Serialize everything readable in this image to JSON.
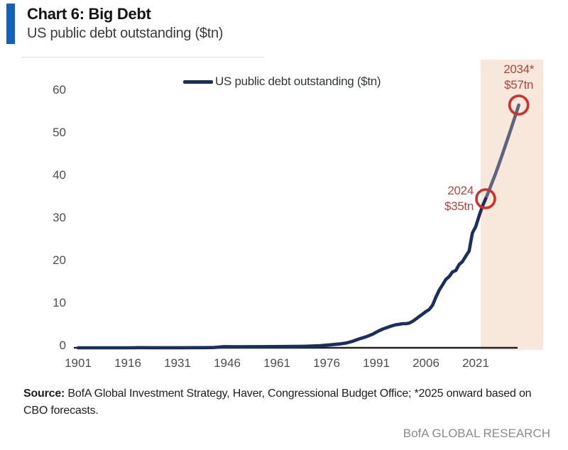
{
  "header": {
    "title": "Chart 6: Big Debt",
    "subtitle": "US public debt outstanding ($tn)",
    "accent_color": "#1161c3"
  },
  "chart_data": {
    "type": "line",
    "title": "US public debt outstanding ($tn)",
    "legend": [
      "US public debt outstanding ($tn)"
    ],
    "legend_position": "top-center",
    "xlabel": "",
    "ylabel": "",
    "x_ticks": [
      1901,
      1916,
      1931,
      1946,
      1961,
      1976,
      1991,
      2006,
      2021
    ],
    "y_ticks": [
      0,
      10,
      20,
      30,
      40,
      50,
      60
    ],
    "xlim": [
      1899,
      2041
    ],
    "ylim": [
      0,
      63
    ],
    "grid": false,
    "series": [
      {
        "name": "US public debt outstanding ($tn)",
        "points": [
          [
            1901,
            0.001
          ],
          [
            1905,
            0.001
          ],
          [
            1910,
            0.001
          ],
          [
            1914,
            0.001
          ],
          [
            1916,
            0.004
          ],
          [
            1918,
            0.015
          ],
          [
            1919,
            0.027
          ],
          [
            1920,
            0.026
          ],
          [
            1923,
            0.022
          ],
          [
            1927,
            0.018
          ],
          [
            1930,
            0.016
          ],
          [
            1933,
            0.023
          ],
          [
            1936,
            0.034
          ],
          [
            1939,
            0.04
          ],
          [
            1941,
            0.049
          ],
          [
            1942,
            0.072
          ],
          [
            1943,
            0.137
          ],
          [
            1944,
            0.201
          ],
          [
            1945,
            0.259
          ],
          [
            1946,
            0.269
          ],
          [
            1948,
            0.252
          ],
          [
            1950,
            0.257
          ],
          [
            1953,
            0.266
          ],
          [
            1956,
            0.273
          ],
          [
            1960,
            0.286
          ],
          [
            1963,
            0.306
          ],
          [
            1966,
            0.32
          ],
          [
            1969,
            0.354
          ],
          [
            1972,
            0.427
          ],
          [
            1974,
            0.475
          ],
          [
            1976,
            0.62
          ],
          [
            1978,
            0.772
          ],
          [
            1980,
            0.908
          ],
          [
            1982,
            1.14
          ],
          [
            1984,
            1.57
          ],
          [
            1986,
            2.13
          ],
          [
            1988,
            2.6
          ],
          [
            1990,
            3.23
          ],
          [
            1991,
            3.67
          ],
          [
            1992,
            4.06
          ],
          [
            1993,
            4.41
          ],
          [
            1994,
            4.69
          ],
          [
            1995,
            4.97
          ],
          [
            1996,
            5.22
          ],
          [
            1997,
            5.41
          ],
          [
            1998,
            5.53
          ],
          [
            1999,
            5.66
          ],
          [
            2000,
            5.67
          ],
          [
            2001,
            5.81
          ],
          [
            2002,
            6.23
          ],
          [
            2003,
            6.78
          ],
          [
            2004,
            7.38
          ],
          [
            2005,
            7.93
          ],
          [
            2006,
            8.51
          ],
          [
            2007,
            9.01
          ],
          [
            2008,
            10.02
          ],
          [
            2009,
            11.91
          ],
          [
            2010,
            13.56
          ],
          [
            2011,
            14.79
          ],
          [
            2012,
            16.07
          ],
          [
            2013,
            16.74
          ],
          [
            2014,
            17.82
          ],
          [
            2015,
            18.15
          ],
          [
            2016,
            19.57
          ],
          [
            2017,
            20.24
          ],
          [
            2018,
            21.52
          ],
          [
            2019,
            22.72
          ],
          [
            2020,
            26.95
          ],
          [
            2021,
            28.43
          ],
          [
            2022,
            30.93
          ],
          [
            2023,
            33.17
          ],
          [
            2024,
            35.0
          ],
          [
            2025,
            36.9
          ],
          [
            2026,
            38.9
          ],
          [
            2027,
            40.9
          ],
          [
            2028,
            43.1
          ],
          [
            2029,
            45.3
          ],
          [
            2030,
            47.6
          ],
          [
            2031,
            49.9
          ],
          [
            2032,
            52.2
          ],
          [
            2033,
            54.6
          ],
          [
            2034,
            57.0
          ]
        ]
      }
    ],
    "forecast_start_year": 2024,
    "forecast_region": {
      "start_year": 2022.5,
      "color": "#f8e7db"
    },
    "annotations": [
      {
        "year": 2024,
        "value": 35,
        "label_lines": [
          "2024",
          "$35tn"
        ],
        "placement": "left"
      },
      {
        "year": 2034,
        "value": 57,
        "label_lines": [
          "2034*",
          "$57tn"
        ],
        "placement": "above"
      }
    ],
    "colors": {
      "line": "#1b2f5e",
      "forecast_line": "#5b6580",
      "annotation_text": "#b5443e",
      "annotation_circle": "#cc322b",
      "axis": "#222222",
      "tick_text": "#4d4d4d"
    }
  },
  "source": {
    "label": "Source:",
    "text": " BofA Global Investment Strategy, Haver, Congressional Budget Office; *2025 onward based on CBO forecasts."
  },
  "footer": {
    "brand": "BofA GLOBAL RESEARCH"
  }
}
